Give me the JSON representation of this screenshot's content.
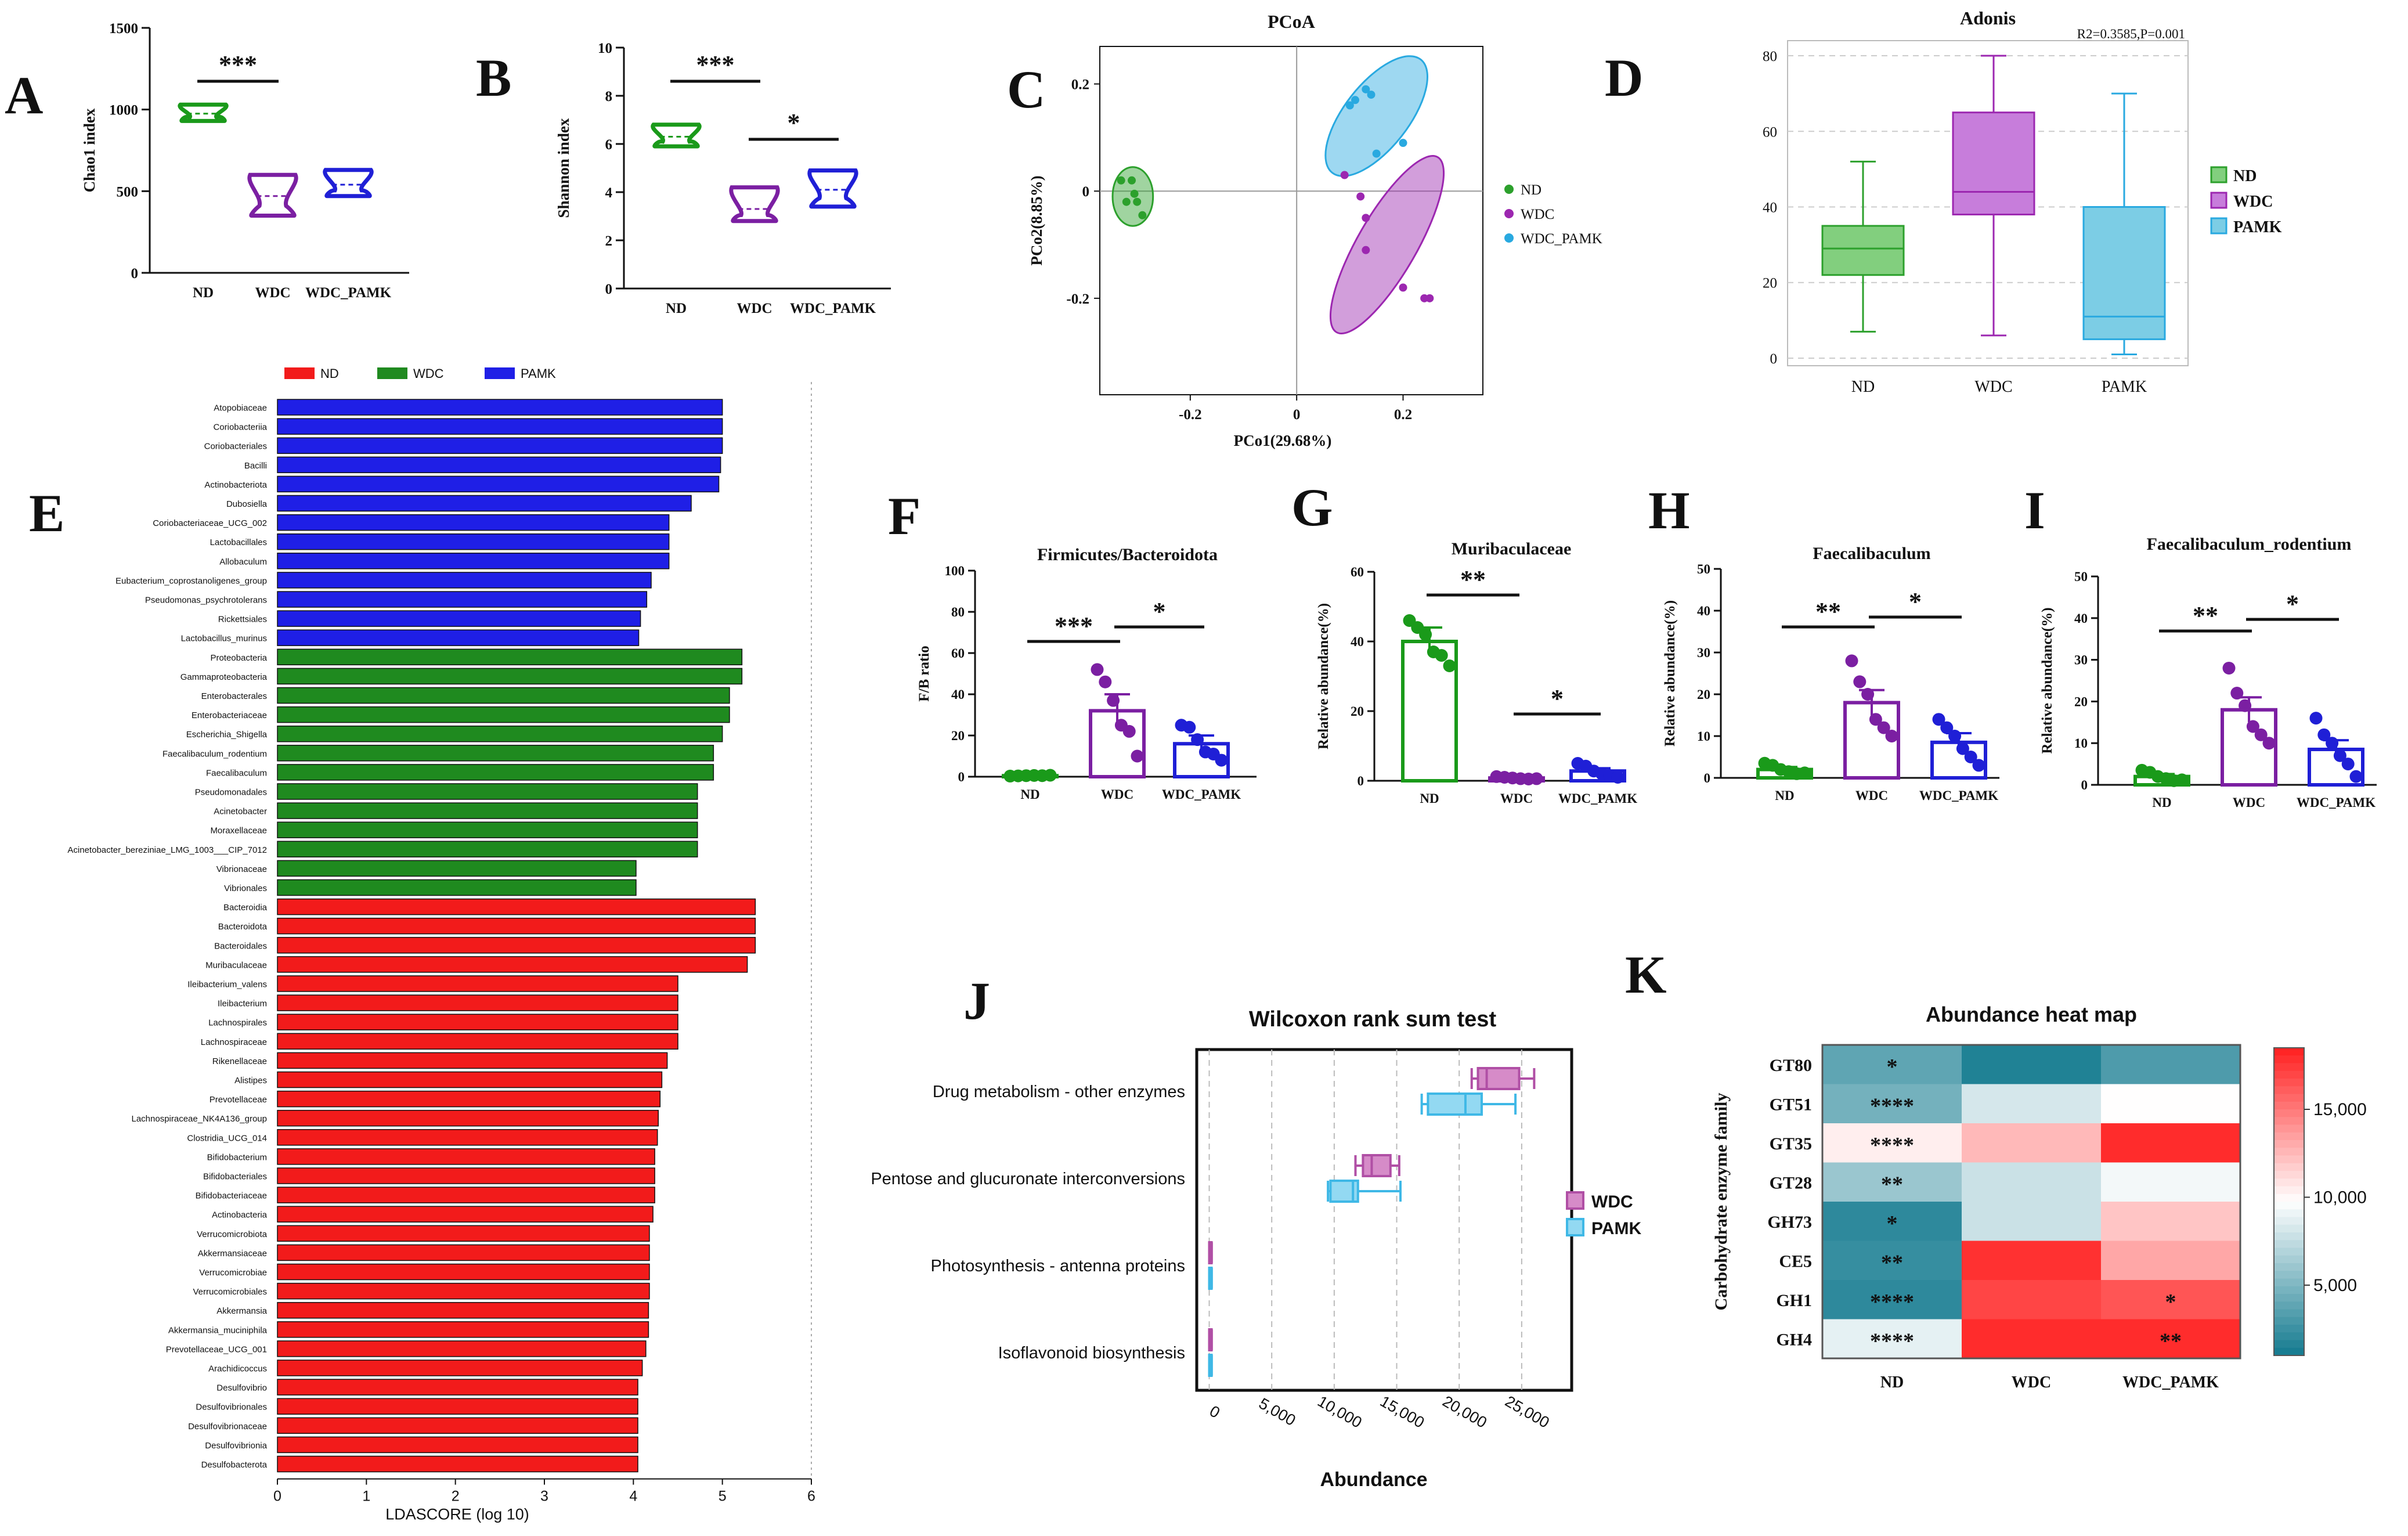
{
  "figure": {
    "panel_letters": [
      "A",
      "B",
      "C",
      "D",
      "E",
      "F",
      "G",
      "H",
      "I",
      "J",
      "K"
    ]
  },
  "chart_data": [
    {
      "id": "A",
      "type": "violin",
      "title": "",
      "ylabel": "Chao1 index",
      "ylim": [
        0,
        1500
      ],
      "yticks": [
        0,
        500,
        1000,
        1500
      ],
      "categories": [
        "ND",
        "WDC",
        "WDC_PAMK"
      ],
      "colors": [
        "#1a9a1a",
        "#7b1fa2",
        "#1f1fd6"
      ],
      "ranges": [
        [
          930,
          1030
        ],
        [
          350,
          600
        ],
        [
          470,
          630
        ]
      ],
      "medians": [
        975,
        470,
        540
      ],
      "significance": [
        {
          "from": 0,
          "to": 1,
          "label": "***"
        }
      ]
    },
    {
      "id": "B",
      "type": "violin",
      "title": "",
      "ylabel": "Shannon index",
      "ylim": [
        0,
        10
      ],
      "yticks": [
        0,
        2,
        4,
        6,
        8,
        10
      ],
      "categories": [
        "ND",
        "WDC",
        "WDC_PAMK"
      ],
      "colors": [
        "#1a9a1a",
        "#7b1fa2",
        "#1f1fd6"
      ],
      "ranges": [
        [
          5.9,
          6.8
        ],
        [
          2.8,
          4.2
        ],
        [
          3.4,
          4.9
        ]
      ],
      "medians": [
        6.3,
        3.3,
        4.1
      ],
      "significance": [
        {
          "from": 0,
          "to": 1,
          "label": "***"
        },
        {
          "from": 1,
          "to": 2,
          "label": "*"
        }
      ]
    },
    {
      "id": "C",
      "type": "scatter",
      "title": "PCoA",
      "xlabel": "PCo1(29.68%)",
      "ylabel": "PCo2(8.85%)",
      "xlim": [
        -0.37,
        0.35
      ],
      "ylim": [
        -0.38,
        0.27
      ],
      "xticks": [
        -0.2,
        0,
        0.2
      ],
      "xtick_labels": [
        "-0.2",
        "0",
        "0.2"
      ],
      "yticks": [
        -0.2,
        0,
        0.2
      ],
      "ytick_labels": [
        "-0.2",
        "0",
        "0.2"
      ],
      "series": [
        {
          "name": "ND",
          "color": "#2ca02c",
          "x": [
            -0.33,
            -0.31,
            -0.32,
            -0.3,
            -0.29,
            -0.305
          ],
          "y": [
            0.02,
            0.02,
            -0.02,
            -0.02,
            -0.045,
            -0.005
          ]
        },
        {
          "name": "WDC",
          "color": "#9c27b0",
          "x": [
            0.09,
            0.12,
            0.13,
            0.13,
            0.2,
            0.24,
            0.25
          ],
          "y": [
            0.03,
            -0.01,
            -0.05,
            -0.11,
            -0.18,
            -0.2,
            -0.2
          ]
        },
        {
          "name": "WDC_PAMK",
          "color": "#29a9e0",
          "x": [
            0.1,
            0.11,
            0.13,
            0.14,
            0.15,
            0.2
          ],
          "y": [
            0.16,
            0.17,
            0.19,
            0.18,
            0.07,
            0.09
          ]
        }
      ],
      "ellipses": [
        {
          "color": "#2ca02c",
          "cx": -0.308,
          "cy": -0.01,
          "rx": 0.038,
          "ry": 0.055,
          "angle": 0
        },
        {
          "color": "#9c27b0",
          "cx": 0.17,
          "cy": -0.1,
          "rx": 0.19,
          "ry": 0.055,
          "angle": -60
        },
        {
          "color": "#29a9e0",
          "cx": 0.15,
          "cy": 0.14,
          "rx": 0.135,
          "ry": 0.06,
          "angle": -52
        }
      ]
    },
    {
      "id": "D",
      "type": "box",
      "title": "Adonis",
      "annotation": "R2=0.3585,P=0.001",
      "ylim": [
        -2,
        84
      ],
      "yticks": [
        0,
        20,
        40,
        60,
        80
      ],
      "categories": [
        "ND",
        "WDC",
        "PAMK"
      ],
      "legend": [
        "ND",
        "WDC",
        "PAMK"
      ],
      "colors": [
        "#2ca02c",
        "#9c27b0",
        "#29a9e0"
      ],
      "fills": [
        "#82cf7e",
        "#c77ddb",
        "#7ccde5"
      ],
      "boxes": [
        {
          "min": 7,
          "q1": 22,
          "median": 29,
          "q3": 35,
          "max": 52
        },
        {
          "min": 6,
          "q1": 38,
          "median": 44,
          "q3": 65,
          "max": 80
        },
        {
          "min": 1,
          "q1": 5,
          "median": 11,
          "q3": 40,
          "max": 70
        }
      ]
    },
    {
      "id": "E",
      "type": "bar",
      "orientation": "horizontal",
      "xlabel": "LDASCORE (log 10)",
      "xlim": [
        0,
        6
      ],
      "xticks": [
        0,
        1,
        2,
        3,
        4,
        5,
        6
      ],
      "legend": [
        {
          "name": "ND",
          "color": "#f21b1b"
        },
        {
          "name": "WDC",
          "color": "#1f8a1f"
        },
        {
          "name": "PAMK",
          "color": "#1f1fe6"
        }
      ],
      "groups": [
        {
          "name": "PAMK",
          "color": "#1f1fe6",
          "bars": [
            [
              "Atopobiaceae",
              5.0
            ],
            [
              "Coriobacteriia",
              5.0
            ],
            [
              "Coriobacteriales",
              5.0
            ],
            [
              "Bacilli",
              4.98
            ],
            [
              "Actinobacteriota",
              4.96
            ],
            [
              "Dubosiella",
              4.65
            ],
            [
              "Coriobacteriaceae_UCG_002",
              4.4
            ],
            [
              "Lactobacillales",
              4.4
            ],
            [
              "Allobaculum",
              4.4
            ],
            [
              "Eubacterium_coprostanoligenes_group",
              4.2
            ],
            [
              "Pseudomonas_psychrotolerans",
              4.15
            ],
            [
              "Rickettsiales",
              4.08
            ],
            [
              "Lactobacillus_murinus",
              4.06
            ]
          ]
        },
        {
          "name": "WDC",
          "color": "#1f8a1f",
          "bars": [
            [
              "Proteobacteria",
              5.22
            ],
            [
              "Gammaproteobacteria",
              5.22
            ],
            [
              "Enterobacterales",
              5.08
            ],
            [
              "Enterobacteriaceae",
              5.08
            ],
            [
              "Escherichia_Shigella",
              5.0
            ],
            [
              "Faecalibaculum_rodentium",
              4.9
            ],
            [
              "Faecalibaculum",
              4.9
            ],
            [
              "Pseudomonadales",
              4.72
            ],
            [
              "Acinetobacter",
              4.72
            ],
            [
              "Moraxellaceae",
              4.72
            ],
            [
              "Acinetobacter_bereziniae_LMG_1003___CIP_7012",
              4.72
            ],
            [
              "Vibrionaceae",
              4.03
            ],
            [
              "Vibrionales",
              4.03
            ]
          ]
        },
        {
          "name": "ND",
          "color": "#f21b1b",
          "bars": [
            [
              "Bacteroidia",
              5.37
            ],
            [
              "Bacteroidota",
              5.37
            ],
            [
              "Bacteroidales",
              5.37
            ],
            [
              "Muribaculaceae",
              5.28
            ],
            [
              "Ileibacterium_valens",
              4.5
            ],
            [
              "Ileibacterium",
              4.5
            ],
            [
              "Lachnospirales",
              4.5
            ],
            [
              "Lachnospiraceae",
              4.5
            ],
            [
              "Rikenellaceae",
              4.38
            ],
            [
              "Alistipes",
              4.32
            ],
            [
              "Prevotellaceae",
              4.3
            ],
            [
              "Lachnospiraceae_NK4A136_group",
              4.28
            ],
            [
              "Clostridia_UCG_014",
              4.27
            ],
            [
              "Bifidobacterium",
              4.24
            ],
            [
              "Bifidobacteriales",
              4.24
            ],
            [
              "Bifidobacteriaceae",
              4.24
            ],
            [
              "Actinobacteria",
              4.22
            ],
            [
              "Verrucomicrobiota",
              4.18
            ],
            [
              "Akkermansiaceae",
              4.18
            ],
            [
              "Verrucomicrobiae",
              4.18
            ],
            [
              "Verrucomicrobiales",
              4.18
            ],
            [
              "Akkermansia",
              4.17
            ],
            [
              "Akkermansia_muciniphila",
              4.17
            ],
            [
              "Prevotellaceae_UCG_001",
              4.14
            ],
            [
              "Arachidicoccus",
              4.1
            ],
            [
              "Desulfovibrio",
              4.05
            ],
            [
              "Desulfovibrionales",
              4.05
            ],
            [
              "Desulfovibrionaceae",
              4.05
            ],
            [
              "Desulfovibrionia",
              4.05
            ],
            [
              "Desulfobacterota",
              4.05
            ]
          ]
        }
      ]
    },
    {
      "id": "F",
      "type": "bar",
      "title": "Firmicutes/Bacteroidota",
      "ylabel": "F/B ratio",
      "ylim": [
        0,
        100
      ],
      "yticks": [
        0,
        20,
        40,
        60,
        80,
        100
      ],
      "categories": [
        "ND",
        "WDC",
        "WDC_PAMK"
      ],
      "colors": [
        "#1a9a1a",
        "#7b1fa2",
        "#1f1fd6"
      ],
      "values": [
        0.5,
        32,
        16
      ],
      "errors": [
        0.3,
        8,
        4
      ],
      "points": [
        [
          0.3,
          0.4,
          0.5,
          0.6,
          0.5,
          0.7
        ],
        [
          52,
          46,
          37,
          25,
          22,
          10
        ],
        [
          25,
          24,
          18,
          12,
          11,
          8
        ]
      ],
      "significance": [
        {
          "from": 0,
          "to": 1,
          "label": "***"
        },
        {
          "from": 1,
          "to": 2,
          "label": "*"
        }
      ]
    },
    {
      "id": "G",
      "type": "bar",
      "title": "Muribaculaceae",
      "ylabel": "Relative abundance(%)",
      "ylim": [
        0,
        60
      ],
      "yticks": [
        0,
        20,
        40,
        60
      ],
      "categories": [
        "ND",
        "WDC",
        "WDC_PAMK"
      ],
      "colors": [
        "#1a9a1a",
        "#7b1fa2",
        "#1f1fd6"
      ],
      "values": [
        40,
        0.8,
        2.8
      ],
      "errors": [
        4,
        0.4,
        0.8
      ],
      "points": [
        [
          46,
          44,
          42,
          37,
          36,
          33
        ],
        [
          1.2,
          1.0,
          0.8,
          0.6,
          0.5,
          0.6
        ],
        [
          5.0,
          4.2,
          2.8,
          2.0,
          1.5,
          1.0
        ]
      ],
      "significance": [
        {
          "from": 0,
          "to": 1,
          "label": "**"
        },
        {
          "from": 1,
          "to": 2,
          "label": "*"
        }
      ]
    },
    {
      "id": "H",
      "type": "bar",
      "title": "Faecalibaculum",
      "ylabel": "Relative abundance(%)",
      "ylim": [
        0,
        50
      ],
      "yticks": [
        0,
        10,
        20,
        30,
        40,
        50
      ],
      "categories": [
        "ND",
        "WDC",
        "WDC_PAMK"
      ],
      "colors": [
        "#1a9a1a",
        "#7b1fa2",
        "#1f1fd6"
      ],
      "values": [
        2,
        18,
        8.5
      ],
      "errors": [
        0.6,
        3,
        2.2
      ],
      "points": [
        [
          3.5,
          3.0,
          2.0,
          1.5,
          1.0,
          1.2
        ],
        [
          28,
          23,
          20,
          14,
          12,
          10
        ],
        [
          14,
          12,
          10,
          7,
          5,
          3
        ]
      ],
      "significance": [
        {
          "from": 0,
          "to": 1,
          "label": "**"
        },
        {
          "from": 1,
          "to": 2,
          "label": "*"
        }
      ]
    },
    {
      "id": "I",
      "type": "bar",
      "title": "Faecalibaculum_rodentium",
      "ylabel": "Relative abundance(%)",
      "ylim": [
        0,
        50
      ],
      "yticks": [
        0,
        10,
        20,
        30,
        40,
        50
      ],
      "categories": [
        "ND",
        "WDC",
        "WDC_PAMK"
      ],
      "colors": [
        "#1a9a1a",
        "#7b1fa2",
        "#1f1fd6"
      ],
      "values": [
        2,
        18,
        8.5
      ],
      "errors": [
        0.6,
        3,
        2.2
      ],
      "points": [
        [
          3.5,
          3.0,
          2.0,
          1.5,
          1.0,
          1.2
        ],
        [
          28,
          22,
          19,
          14,
          12,
          10
        ],
        [
          16,
          12,
          10,
          7,
          5,
          2
        ]
      ],
      "significance": [
        {
          "from": 0,
          "to": 1,
          "label": "**"
        },
        {
          "from": 1,
          "to": 2,
          "label": "*"
        }
      ]
    },
    {
      "id": "J",
      "type": "box",
      "orientation": "horizontal",
      "title": "Wilcoxon rank sum test",
      "xlabel": "Abundance",
      "xlim": [
        -1000,
        29000
      ],
      "xticks": [
        0,
        5000,
        10000,
        15000,
        20000,
        25000
      ],
      "xtick_labels": [
        "0",
        "5,000",
        "10,000",
        "15,000",
        "20,000",
        "25,000"
      ],
      "legend": [
        "WDC",
        "PAMK"
      ],
      "colors": {
        "WDC": "#b04fa5",
        "PAMK": "#3fb8e6"
      },
      "fills": {
        "WDC": "#d68bc8",
        "PAMK": "#93d9f2"
      },
      "categories": [
        "Drug metabolism - other enzymes",
        "Pentose and glucuronate interconversions",
        "Photosynthesis - antenna proteins",
        "Isoflavonoid biosynthesis"
      ],
      "boxes": [
        {
          "WDC": {
            "min": 21000,
            "q1": 21500,
            "median": 22200,
            "q3": 24800,
            "max": 26000
          },
          "PAMK": {
            "min": 17000,
            "q1": 17500,
            "median": 20500,
            "q3": 21800,
            "max": 24500
          }
        },
        {
          "WDC": {
            "min": 11700,
            "q1": 12300,
            "median": 13000,
            "q3": 14500,
            "max": 15200
          },
          "PAMK": {
            "min": 9500,
            "q1": 9700,
            "median": 11500,
            "q3": 11900,
            "max": 15300
          }
        },
        {
          "WDC": {
            "min": 0,
            "q1": 0,
            "median": 0,
            "q3": 150,
            "max": 200
          },
          "PAMK": {
            "min": 0,
            "q1": 0,
            "median": 0,
            "q3": 150,
            "max": 200
          }
        },
        {
          "WDC": {
            "min": 0,
            "q1": 0,
            "median": 0,
            "q3": 150,
            "max": 200
          },
          "PAMK": {
            "min": 0,
            "q1": 0,
            "median": 0,
            "q3": 150,
            "max": 200
          }
        }
      ]
    },
    {
      "id": "K",
      "type": "heatmap",
      "title": "Abundance heat map",
      "ylabel": "Carbohydrate enzyme family",
      "rows": [
        "GT80",
        "GT51",
        "GT35",
        "GT28",
        "GH73",
        "CE5",
        "GH1",
        "GH4"
      ],
      "columns": [
        "ND",
        "WDC",
        "WDC_PAMK"
      ],
      "values": [
        [
          3800,
          1500,
          3200
        ],
        [
          4600,
          8200,
          9800
        ],
        [
          10400,
          12500,
          18000
        ],
        [
          6000,
          7800,
          9300
        ],
        [
          2000,
          7800,
          12000
        ],
        [
          2300,
          17800,
          13200
        ],
        [
          2000,
          17000,
          16400
        ],
        [
          8800,
          18000,
          18000
        ]
      ],
      "stars": [
        [
          "*",
          "",
          ""
        ],
        [
          "****",
          "",
          ""
        ],
        [
          "****",
          "",
          ""
        ],
        [
          "**",
          "",
          ""
        ],
        [
          "*",
          "",
          ""
        ],
        [
          "**",
          "",
          ""
        ],
        [
          "****",
          "",
          "*"
        ],
        [
          "****",
          "",
          "**"
        ]
      ],
      "colorbar": {
        "min": 1000,
        "max": 18500,
        "ticks": [
          5000,
          10000,
          15000
        ],
        "tick_labels": [
          "5,000",
          "10,000",
          "15,000"
        ]
      },
      "color_scale": [
        "#137a8f",
        "#ffffff",
        "#ff1f1f"
      ]
    }
  ]
}
